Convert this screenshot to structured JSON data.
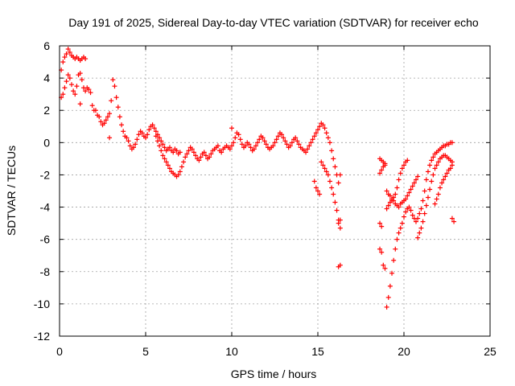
{
  "chart_data": {
    "type": "scatter",
    "title": "Day 191 of 2025, Sidereal Day-to-day VTEC variation (SDTVAR) for receiver echo",
    "xlabel": "GPS time / hours",
    "ylabel": "SDTVAR / TECUs",
    "xlim": [
      0,
      25
    ],
    "ylim": [
      -12,
      6
    ],
    "xticks": [
      "0",
      "5",
      "10",
      "15",
      "20",
      "25"
    ],
    "yticks": [
      "-12",
      "-10",
      "-8",
      "-6",
      "-4",
      "-2",
      "0",
      "2",
      "4",
      "6"
    ],
    "grid": true,
    "marker": "+",
    "color": "#ff0000",
    "series": [
      {
        "name": "SDTVAR",
        "x": [
          0.1,
          0.2,
          0.3,
          0.4,
          0.5,
          0.6,
          0.7,
          0.8,
          0.9,
          1.0,
          1.1,
          1.2,
          1.3,
          1.4,
          1.5,
          0.1,
          0.2,
          0.3,
          0.4,
          0.5,
          0.6,
          0.7,
          0.8,
          0.9,
          1.0,
          1.1,
          1.2,
          1.3,
          1.4,
          1.5,
          1.6,
          1.7,
          1.8,
          1.9,
          2.0,
          2.1,
          2.2,
          2.3,
          2.4,
          2.5,
          2.6,
          2.7,
          2.8,
          2.9,
          3.0,
          3.1,
          3.2,
          3.3,
          3.4,
          3.5,
          3.6,
          3.7,
          3.8,
          3.9,
          4.0,
          4.1,
          4.2,
          4.3,
          4.4,
          4.5,
          4.6,
          4.7,
          4.8,
          4.9,
          5.0,
          5.1,
          5.2,
          5.3,
          5.4,
          5.5,
          5.6,
          5.7,
          5.8,
          5.9,
          6.0,
          6.1,
          6.2,
          6.3,
          6.4,
          6.5,
          6.6,
          6.7,
          6.8,
          6.9,
          7.0,
          5.6,
          5.7,
          5.8,
          5.9,
          6.0,
          6.1,
          6.2,
          6.3,
          6.4,
          6.5,
          6.6,
          6.7,
          6.8,
          6.9,
          7.0,
          7.1,
          7.2,
          7.3,
          7.4,
          7.5,
          7.6,
          7.7,
          7.8,
          7.9,
          8.0,
          8.1,
          8.2,
          8.3,
          8.4,
          8.5,
          8.6,
          8.7,
          8.8,
          8.9,
          9.0,
          9.1,
          9.2,
          9.3,
          9.4,
          9.5,
          9.6,
          9.7,
          9.8,
          9.9,
          10.0,
          10.1,
          10.2,
          10.3,
          10.4,
          10.5,
          10.6,
          10.7,
          10.8,
          10.9,
          11.0,
          11.1,
          11.2,
          11.3,
          11.4,
          11.5,
          11.6,
          11.7,
          11.8,
          11.9,
          12.0,
          12.1,
          12.2,
          12.3,
          12.4,
          12.5,
          12.6,
          12.7,
          12.8,
          12.9,
          13.0,
          13.1,
          13.2,
          13.3,
          13.4,
          13.5,
          13.6,
          13.7,
          13.8,
          13.9,
          14.0,
          14.1,
          14.2,
          14.3,
          14.4,
          14.5,
          14.6,
          14.7,
          14.8,
          14.9,
          15.0,
          15.1,
          15.2,
          15.3,
          15.4,
          15.5,
          15.6,
          15.7,
          15.8,
          15.9,
          16.0,
          16.1,
          16.2,
          16.3,
          14.8,
          14.9,
          15.0,
          15.1,
          15.2,
          15.3,
          15.4,
          15.5,
          15.6,
          15.7,
          15.8,
          15.9,
          16.0,
          16.1,
          16.2,
          16.3,
          16.2,
          16.3,
          18.6,
          18.7,
          18.8,
          18.9,
          19.0,
          19.1,
          19.2,
          19.3,
          19.4,
          19.5,
          19.6,
          19.7,
          19.8,
          19.9,
          20.0,
          20.1,
          20.2,
          18.6,
          18.7,
          18.8,
          18.9,
          19.0,
          19.1,
          19.2,
          19.3,
          19.4,
          19.5,
          19.6,
          19.7,
          19.8,
          19.9,
          20.0,
          20.1,
          20.2,
          20.3,
          20.4,
          20.5,
          20.6,
          20.7,
          20.8,
          18.6,
          18.7,
          18.8,
          18.9,
          19.0,
          19.1,
          19.2,
          19.3,
          19.4,
          19.5,
          19.6,
          19.7,
          19.8,
          19.9,
          20.0,
          20.1,
          20.2,
          20.3,
          20.4,
          20.5,
          20.6,
          20.7,
          20.8,
          20.9,
          21.0,
          21.1,
          21.2,
          21.3,
          21.4,
          21.5,
          21.6,
          21.7,
          21.8,
          21.9,
          22.0,
          22.1,
          22.2,
          22.3,
          22.4,
          22.5,
          22.6,
          22.7,
          22.8,
          20.8,
          20.9,
          21.0,
          21.1,
          21.2,
          21.3,
          21.4,
          21.5,
          21.6,
          21.7,
          21.8,
          21.9,
          22.0,
          22.1,
          22.2,
          22.3,
          22.4,
          22.5,
          22.6,
          22.7,
          22.8,
          21.8,
          21.9,
          22.0,
          22.1,
          22.2,
          22.3,
          22.4,
          22.5,
          22.6,
          22.7,
          22.8,
          22.8,
          22.9,
          16.2,
          16.3,
          18.6,
          18.7,
          1.2,
          2.9,
          10.0
        ],
        "y": [
          4.5,
          5.0,
          5.3,
          5.5,
          5.8,
          5.6,
          5.4,
          5.3,
          5.2,
          5.3,
          5.2,
          5.1,
          5.2,
          5.3,
          5.2,
          2.8,
          3.0,
          3.4,
          3.8,
          4.2,
          4.0,
          3.6,
          3.2,
          3.0,
          3.5,
          4.2,
          4.3,
          3.9,
          3.4,
          3.2,
          3.4,
          3.3,
          3.1,
          2.3,
          2.0,
          2.0,
          1.7,
          1.6,
          1.3,
          1.1,
          1.2,
          1.4,
          1.6,
          1.8,
          2.6,
          3.9,
          3.5,
          2.8,
          2.2,
          1.6,
          1.1,
          0.7,
          0.4,
          0.3,
          0.1,
          -0.2,
          -0.4,
          -0.3,
          -0.1,
          0.2,
          0.5,
          0.7,
          0.6,
          0.4,
          0.3,
          0.5,
          0.8,
          1.0,
          1.1,
          0.9,
          0.7,
          0.5,
          0.3,
          0.1,
          -0.1,
          -0.3,
          -0.5,
          -0.4,
          -0.3,
          -0.5,
          -0.6,
          -0.4,
          -0.5,
          -0.7,
          -0.6,
          0.4,
          0.1,
          -0.2,
          -0.5,
          -0.8,
          -1.0,
          -1.2,
          -1.4,
          -1.6,
          -1.8,
          -1.9,
          -2.0,
          -2.1,
          -2.0,
          -1.8,
          -1.5,
          -1.2,
          -0.9,
          -0.7,
          -0.5,
          -0.3,
          -0.4,
          -0.6,
          -0.8,
          -1.0,
          -1.1,
          -0.9,
          -0.7,
          -0.6,
          -0.8,
          -1.0,
          -0.9,
          -0.7,
          -0.5,
          -0.4,
          -0.3,
          -0.2,
          -0.5,
          -0.6,
          -0.4,
          -0.3,
          -0.2,
          -0.3,
          -0.4,
          -0.2,
          0.0,
          0.3,
          0.6,
          0.5,
          0.2,
          -0.1,
          -0.3,
          -0.2,
          0.0,
          -0.1,
          -0.3,
          -0.5,
          -0.4,
          -0.2,
          0.0,
          0.2,
          0.4,
          0.3,
          0.1,
          -0.1,
          -0.3,
          -0.4,
          -0.3,
          -0.2,
          0.0,
          0.2,
          0.4,
          0.6,
          0.5,
          0.3,
          0.1,
          -0.1,
          -0.3,
          -0.2,
          0.0,
          0.2,
          0.3,
          0.1,
          -0.1,
          -0.3,
          -0.4,
          -0.5,
          -0.6,
          -0.4,
          -0.2,
          0.0,
          0.2,
          0.4,
          0.6,
          0.8,
          1.0,
          1.2,
          1.1,
          0.9,
          0.6,
          0.3,
          0.0,
          -0.5,
          -1.0,
          -1.5,
          -2.0,
          -2.5,
          -2.0,
          -2.4,
          -2.8,
          -3.0,
          -3.2,
          -1.2,
          -1.4,
          -1.6,
          -1.8,
          -2.0,
          -2.4,
          -2.8,
          -3.2,
          -3.7,
          -4.2,
          -4.8,
          -5.3,
          -5.0,
          -4.8,
          -5.0,
          -5.2,
          -7.6,
          -7.8,
          -4.1,
          -3.9,
          -3.7,
          -3.6,
          -3.4,
          -3.2,
          -2.8,
          -2.3,
          -1.9,
          -1.6,
          -1.4,
          -1.2,
          -1.1,
          -1.0,
          -1.1,
          -1.2,
          -1.3,
          -3.0,
          -3.2,
          -3.3,
          -3.5,
          -3.6,
          -3.8,
          -3.9,
          -4.0,
          -3.8,
          -3.7,
          -3.6,
          -3.5,
          -3.3,
          -3.1,
          -2.9,
          -2.7,
          -2.5,
          -2.3,
          -2.1,
          -1.9,
          -1.7,
          -1.5,
          -1.4,
          -10.2,
          -9.6,
          -8.9,
          -8.1,
          -7.3,
          -6.6,
          -6.0,
          -5.6,
          -5.3,
          -5.0,
          -4.6,
          -4.3,
          -4.1,
          -4.0,
          -4.2,
          -4.5,
          -4.7,
          -4.9,
          -4.7,
          -4.4,
          -4.1,
          -3.6,
          -3.0,
          -2.3,
          -1.8,
          -1.4,
          -1.1,
          -0.9,
          -0.7,
          -0.6,
          -0.5,
          -0.4,
          -0.3,
          -0.2,
          -0.2,
          -0.1,
          -0.1,
          0.0,
          0.0,
          -5.9,
          -5.6,
          -5.3,
          -4.9,
          -4.4,
          -3.9,
          -3.4,
          -2.9,
          -2.4,
          -2.0,
          -1.6,
          -1.4,
          -1.2,
          -1.0,
          -0.9,
          -0.8,
          -0.8,
          -0.9,
          -1.0,
          -1.1,
          -1.2,
          -3.8,
          -3.5,
          -3.2,
          -2.8,
          -2.5,
          -2.3,
          -2.1,
          -1.9,
          -1.7,
          -1.6,
          -1.4,
          -4.7,
          -4.9,
          -7.7,
          -7.6,
          -6.6,
          -6.8,
          2.4,
          0.3,
          0.9
        ]
      }
    ]
  }
}
